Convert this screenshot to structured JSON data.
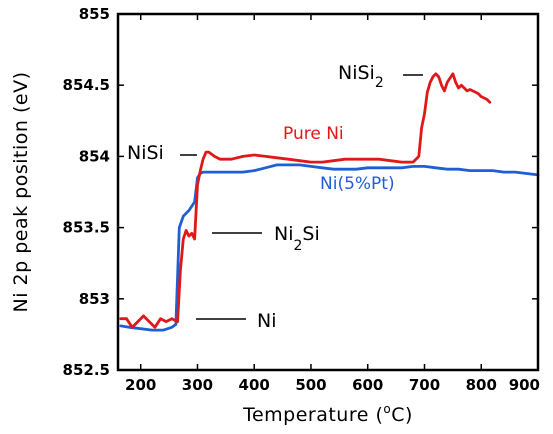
{
  "chart_data": {
    "type": "line",
    "xlabel": "Temperature (°C)",
    "xlabel_main": "Temperature (",
    "xlabel_sup": "o",
    "xlabel_end": "C)",
    "ylabel": "Ni 2p peak position (eV)",
    "xlim": [
      160,
      900
    ],
    "ylim": [
      852.5,
      855
    ],
    "xticks": [
      200,
      300,
      400,
      500,
      600,
      700,
      800,
      900
    ],
    "yticks": [
      852.5,
      853,
      853.5,
      854,
      854.5,
      855
    ],
    "grid": false,
    "series": [
      {
        "name": "Pure Ni",
        "color": "#e01818",
        "x": [
          165,
          175,
          185,
          195,
          205,
          215,
          225,
          235,
          245,
          255,
          265,
          270,
          275,
          280,
          285,
          290,
          295,
          300,
          305,
          310,
          315,
          320,
          330,
          340,
          360,
          380,
          400,
          420,
          440,
          460,
          480,
          500,
          520,
          540,
          560,
          580,
          600,
          620,
          640,
          660,
          680,
          690,
          695,
          700,
          705,
          710,
          715,
          720,
          725,
          730,
          735,
          740,
          745,
          750,
          755,
          760,
          765,
          770,
          775,
          780,
          785,
          790,
          795,
          800,
          805,
          810,
          815
        ],
        "y": [
          852.86,
          852.86,
          852.8,
          852.84,
          852.88,
          852.84,
          852.8,
          852.86,
          852.84,
          852.86,
          852.84,
          853.2,
          853.42,
          853.48,
          853.44,
          853.46,
          853.42,
          853.8,
          853.9,
          853.98,
          854.03,
          854.03,
          854.0,
          853.98,
          853.98,
          854.0,
          854.01,
          854.0,
          853.99,
          853.98,
          853.97,
          853.96,
          853.96,
          853.97,
          853.98,
          853.98,
          853.98,
          853.98,
          853.97,
          853.96,
          853.96,
          854.0,
          854.2,
          854.3,
          854.45,
          854.52,
          854.56,
          854.58,
          854.56,
          854.5,
          854.46,
          854.52,
          854.55,
          854.58,
          854.52,
          854.48,
          854.5,
          854.48,
          854.46,
          854.47,
          854.46,
          854.45,
          854.44,
          854.42,
          854.41,
          854.4,
          854.38
        ]
      },
      {
        "name": "Ni(5%Pt)",
        "color": "#1f5fd6",
        "x": [
          165,
          180,
          200,
          220,
          240,
          255,
          262,
          268,
          275,
          285,
          295,
          300,
          305,
          310,
          320,
          340,
          360,
          380,
          400,
          420,
          440,
          460,
          480,
          500,
          520,
          540,
          560,
          580,
          600,
          620,
          640,
          660,
          680,
          700,
          720,
          740,
          760,
          780,
          800,
          820,
          840,
          860,
          880,
          900
        ],
        "y": [
          852.81,
          852.8,
          852.79,
          852.78,
          852.78,
          852.8,
          852.82,
          853.5,
          853.58,
          853.62,
          853.68,
          853.85,
          853.88,
          853.89,
          853.89,
          853.89,
          853.89,
          853.89,
          853.9,
          853.92,
          853.94,
          853.94,
          853.94,
          853.93,
          853.92,
          853.91,
          853.91,
          853.91,
          853.92,
          853.92,
          853.92,
          853.92,
          853.93,
          853.93,
          853.92,
          853.91,
          853.91,
          853.9,
          853.9,
          853.9,
          853.89,
          853.89,
          853.88,
          853.87
        ]
      }
    ],
    "annotations": {
      "nisi2_main": "NiSi",
      "nisi2_sub": "2",
      "nisi": "NiSi",
      "pure_ni": "Pure Ni",
      "ni_pt": "Ni(5%Pt)",
      "ni2si_main": "Ni",
      "ni2si_sub": "2",
      "ni2si_end": "Si",
      "ni": "Ni"
    }
  }
}
